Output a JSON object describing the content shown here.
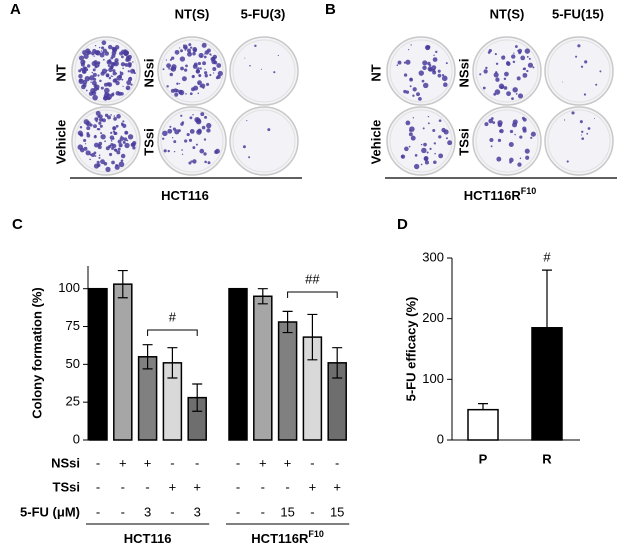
{
  "panel_a": {
    "label": "A",
    "columns": [
      "NT(S)",
      "5-FU(3)"
    ],
    "row_labels": [
      "NT",
      "Vehicle"
    ],
    "dish_labels": [
      "NSsi",
      "TSsi"
    ],
    "caption": "HCT116"
  },
  "panel_b": {
    "label": "B",
    "columns": [
      "NT(S)",
      "5-FU(15)"
    ],
    "row_labels": [
      "NT",
      "Vehicle"
    ],
    "dish_labels": [
      "NSsi",
      "TSsi"
    ],
    "caption": "HCT116R",
    "caption_sup": "F10"
  },
  "chart_data": [
    {
      "panel": "C",
      "type": "bar",
      "ylabel": "Colony formation (%)",
      "categories": [
        null,
        null,
        null,
        null,
        null,
        null,
        null,
        null,
        null,
        null
      ],
      "values": [
        100,
        103,
        55,
        51,
        28,
        100,
        95,
        78,
        68,
        51
      ],
      "errors": [
        0,
        9,
        8,
        10,
        9,
        0,
        5,
        7,
        15,
        10
      ],
      "colors": [
        "#000000",
        "#a6a6a6",
        "#808080",
        "#d9d9d9",
        "#6e6e6e",
        "#000000",
        "#a6a6a6",
        "#808080",
        "#d9d9d9",
        "#6e6e6e"
      ],
      "ylim": [
        0,
        115
      ],
      "yticks": [
        0,
        25,
        50,
        75,
        100
      ],
      "annotations": [
        "#",
        "##"
      ],
      "table": {
        "rows": [
          {
            "label": "NSsi",
            "cells": [
              "-",
              "+",
              "+",
              "-",
              "-",
              "-",
              "+",
              "+",
              "-",
              "-"
            ]
          },
          {
            "label": "TSsi",
            "cells": [
              "-",
              "-",
              "-",
              "+",
              "+",
              "-",
              "-",
              "-",
              "+",
              "+"
            ]
          },
          {
            "label": "5-FU (μM)",
            "cells": [
              "-",
              "-",
              "3",
              "-",
              "3",
              "-",
              "-",
              "15",
              "-",
              "15"
            ]
          }
        ]
      },
      "groups": [
        {
          "label": "HCT116"
        },
        {
          "label": "HCT116R",
          "sup": "F10"
        }
      ]
    },
    {
      "panel": "D",
      "type": "bar",
      "ylabel": "5-FU efficacy (%)",
      "categories": [
        "P",
        "R"
      ],
      "values": [
        50,
        185
      ],
      "errors": [
        10,
        95
      ],
      "colors": [
        "#ffffff",
        "#000000"
      ],
      "ylim": [
        0,
        300
      ],
      "yticks": [
        0,
        100,
        200,
        300
      ],
      "annotations": [
        "#"
      ]
    }
  ]
}
